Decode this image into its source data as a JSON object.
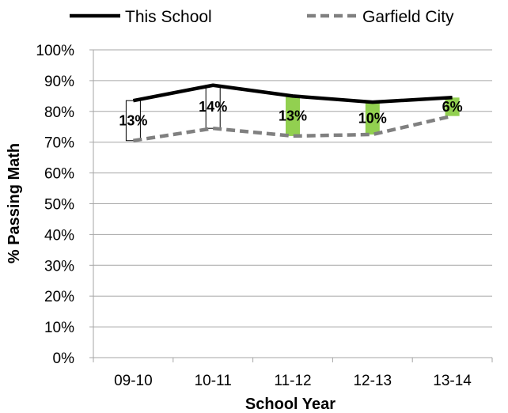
{
  "chart_data": {
    "type": "line",
    "title": "",
    "xlabel": "School Year",
    "ylabel": "% Passing Math",
    "categories": [
      "09-10",
      "10-11",
      "11-12",
      "12-13",
      "13-14"
    ],
    "y_ticks": [
      "0%",
      "10%",
      "20%",
      "30%",
      "40%",
      "50%",
      "60%",
      "70%",
      "80%",
      "90%",
      "100%"
    ],
    "ylim": [
      0,
      100
    ],
    "grid": true,
    "legend_position": "top",
    "series": [
      {
        "name": "This School",
        "values": [
          83.5,
          88.5,
          85,
          83,
          84.5
        ],
        "color": "#000000",
        "style": "solid"
      },
      {
        "name": "Garfield City",
        "values": [
          70.5,
          74.5,
          72,
          72.5,
          78.5
        ],
        "color": "#808080",
        "style": "dashed"
      }
    ],
    "gap_bars": [
      {
        "category": "09-10",
        "label": "13%",
        "fill": "none"
      },
      {
        "category": "10-11",
        "label": "14%",
        "fill": "none"
      },
      {
        "category": "11-12",
        "label": "13%",
        "fill": "#92D050"
      },
      {
        "category": "12-13",
        "label": "10%",
        "fill": "#92D050"
      },
      {
        "category": "13-14",
        "label": "6%",
        "fill": "#92D050"
      }
    ]
  }
}
